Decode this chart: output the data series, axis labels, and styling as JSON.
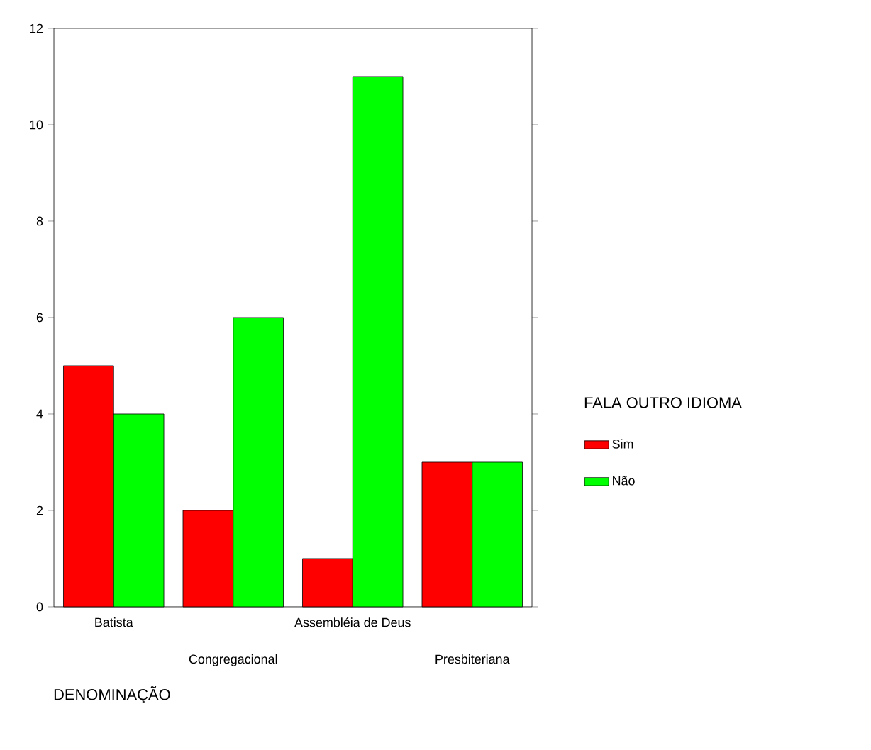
{
  "chart_data": {
    "type": "bar",
    "categories": [
      "Batista",
      "Congregacional",
      "Assembléia de Deus",
      "Presbiteriana"
    ],
    "series": [
      {
        "name": "Sim",
        "color": "#ff0000",
        "values": [
          5,
          2,
          1,
          3
        ]
      },
      {
        "name": "Não",
        "color": "#00ff00",
        "values": [
          4,
          6,
          11,
          3
        ]
      }
    ],
    "ylim": [
      0,
      12
    ],
    "yticks": [
      0,
      2,
      4,
      6,
      8,
      10,
      12
    ],
    "xlabel": "DENOMINAÇÃO",
    "legend_title": "FALA OUTRO IDIOMA",
    "legend": "right"
  }
}
